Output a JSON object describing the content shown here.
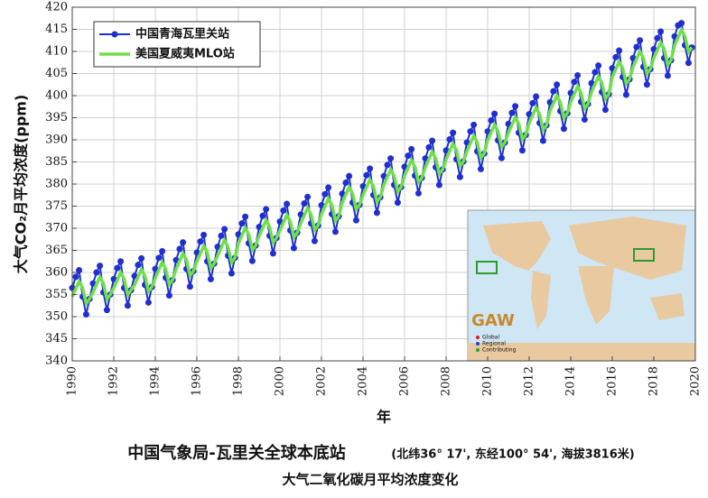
{
  "chart_data": {
    "type": "line",
    "title": "中国气象局-瓦里关全球本底站",
    "title_note": "(北纬36° 17', 东经100° 54', 海拔3816米)",
    "subtitle": "大气二氧化碳月平均浓度变化",
    "xlabel": "年",
    "ylabel": "大气CO₂月平均浓度(ppm)",
    "xlim": [
      1990,
      2020
    ],
    "xticks": [
      1990,
      1992,
      1994,
      1996,
      1998,
      2000,
      2002,
      2004,
      2006,
      2008,
      2010,
      2012,
      2014,
      2016,
      2018,
      2020
    ],
    "ylim": [
      340,
      420
    ],
    "yticks": [
      340,
      345,
      350,
      355,
      360,
      365,
      370,
      375,
      380,
      385,
      390,
      395,
      400,
      405,
      410,
      415,
      420
    ],
    "grid": true,
    "legend": "upper left",
    "inset": {
      "label": "GAW",
      "legend": [
        "Global",
        "Regional",
        "Contributing"
      ]
    },
    "x": [
      1990,
      1990.17,
      1990.33,
      1990.5,
      1990.67,
      1990.83,
      1991,
      1991.17,
      1991.33,
      1991.5,
      1991.67,
      1991.83,
      1992,
      1992.17,
      1992.33,
      1992.5,
      1992.67,
      1992.83,
      1993,
      1993.17,
      1993.33,
      1993.5,
      1993.67,
      1993.83,
      1994,
      1994.17,
      1994.33,
      1994.5,
      1994.67,
      1994.83,
      1995,
      1995.17,
      1995.33,
      1995.5,
      1995.67,
      1995.83,
      1996,
      1996.17,
      1996.33,
      1996.5,
      1996.67,
      1996.83,
      1997,
      1997.17,
      1997.33,
      1997.5,
      1997.67,
      1997.83,
      1998,
      1998.17,
      1998.33,
      1998.5,
      1998.67,
      1998.83,
      1999,
      1999.17,
      1999.33,
      1999.5,
      1999.67,
      1999.83,
      2000,
      2000.17,
      2000.33,
      2000.5,
      2000.67,
      2000.83,
      2001,
      2001.17,
      2001.33,
      2001.5,
      2001.67,
      2001.83,
      2002,
      2002.17,
      2002.33,
      2002.5,
      2002.67,
      2002.83,
      2003,
      2003.17,
      2003.33,
      2003.5,
      2003.67,
      2003.83,
      2004,
      2004.17,
      2004.33,
      2004.5,
      2004.67,
      2004.83,
      2005,
      2005.17,
      2005.33,
      2005.5,
      2005.67,
      2005.83,
      2006,
      2006.17,
      2006.33,
      2006.5,
      2006.67,
      2006.83,
      2007,
      2007.17,
      2007.33,
      2007.5,
      2007.67,
      2007.83,
      2008,
      2008.17,
      2008.33,
      2008.5,
      2008.67,
      2008.83,
      2009,
      2009.17,
      2009.33,
      2009.5,
      2009.67,
      2009.83,
      2010,
      2010.17,
      2010.33,
      2010.5,
      2010.67,
      2010.83,
      2011,
      2011.17,
      2011.33,
      2011.5,
      2011.67,
      2011.83,
      2012,
      2012.17,
      2012.33,
      2012.5,
      2012.67,
      2012.83,
      2013,
      2013.17,
      2013.33,
      2013.5,
      2013.67,
      2013.83,
      2014,
      2014.17,
      2014.33,
      2014.5,
      2014.67,
      2014.83,
      2015,
      2015.17,
      2015.33,
      2015.5,
      2015.67,
      2015.83,
      2016,
      2016.17,
      2016.33,
      2016.5,
      2016.67,
      2016.83,
      2017,
      2017.17,
      2017.33,
      2017.5,
      2017.67,
      2017.83,
      2018,
      2018.17,
      2018.33,
      2018.5,
      2018.67,
      2018.83,
      2019,
      2019.17,
      2019.33,
      2019.5,
      2019.67,
      2019.83
    ],
    "series": [
      {
        "name": "中国青海瓦里关站",
        "color": "#1f2fd0",
        "values": [
          356.5,
          359,
          360.5,
          354.5,
          350.5,
          354,
          357.5,
          360,
          361.5,
          355.5,
          351.5,
          355,
          358.5,
          361,
          362.5,
          356.5,
          352.5,
          356,
          359.2,
          361.7,
          363.2,
          357.2,
          353.2,
          356.7,
          360.8,
          363.3,
          364.8,
          358.8,
          354.8,
          358.3,
          362.8,
          365.3,
          366.8,
          360.8,
          356.8,
          360.3,
          364.5,
          367,
          368.5,
          362.5,
          358.5,
          362,
          365.8,
          368.3,
          369.8,
          363.8,
          359.8,
          363.3,
          368.6,
          371.1,
          372.6,
          366.6,
          362.6,
          366.1,
          370.3,
          372.8,
          374.3,
          368.3,
          364.3,
          367.8,
          371.5,
          374,
          375.5,
          369.5,
          365.5,
          369,
          373.1,
          375.6,
          377.1,
          371.1,
          367.1,
          370.6,
          375.2,
          377.7,
          379.2,
          373.2,
          369.2,
          372.7,
          377.8,
          380.3,
          381.8,
          375.8,
          371.8,
          375.3,
          379.5,
          382,
          383.5,
          377.5,
          373.5,
          377,
          381.8,
          384.3,
          385.8,
          379.8,
          375.8,
          379.3,
          383.9,
          386.4,
          387.9,
          381.9,
          377.9,
          381.4,
          385.8,
          388.3,
          389.8,
          383.8,
          379.8,
          383.3,
          387.6,
          390.1,
          391.6,
          385.6,
          381.6,
          385.1,
          389.4,
          391.9,
          393.4,
          387.4,
          383.4,
          386.9,
          391.9,
          394.4,
          395.9,
          389.9,
          385.9,
          389.4,
          393.6,
          396.1,
          397.6,
          391.6,
          387.6,
          391.1,
          395.8,
          398.3,
          399.8,
          393.8,
          389.8,
          393.3,
          398.5,
          401,
          402.5,
          396.5,
          392.5,
          396,
          400.6,
          403.1,
          404.6,
          398.6,
          394.6,
          398.1,
          402.8,
          405.3,
          406.8,
          400.8,
          396.8,
          400.3,
          406.2,
          408.7,
          410.2,
          404.2,
          400.2,
          403.7,
          408.5,
          411,
          412.5,
          406.5,
          402.5,
          406,
          410.5,
          413,
          414.5,
          408.5,
          404.5,
          408,
          413.4,
          415.9,
          416.4,
          411.4,
          407.4,
          410.9
        ]
      },
      {
        "name": "美国夏威夷MLO站",
        "color": "#6ee04a",
        "values": [
          354.5,
          356.3,
          358,
          356.5,
          353,
          354,
          355.5,
          357.3,
          359,
          357.5,
          354,
          355,
          356.5,
          358.3,
          360,
          358.5,
          355,
          356,
          357.2,
          359,
          360.7,
          359.2,
          355.7,
          356.7,
          358.8,
          360.6,
          362.3,
          360.8,
          357.3,
          358.3,
          360.8,
          362.6,
          364.3,
          362.8,
          359.3,
          360.3,
          362.5,
          364.3,
          366,
          364.5,
          361,
          362,
          363.8,
          365.6,
          367.3,
          365.8,
          362.3,
          363.3,
          366.6,
          368.4,
          370.1,
          368.6,
          365.1,
          366.1,
          368.3,
          370.1,
          371.8,
          370.3,
          366.8,
          367.8,
          369.5,
          371.3,
          373,
          371.5,
          368,
          369,
          371.1,
          372.9,
          374.6,
          373.1,
          369.6,
          370.6,
          373.2,
          375,
          376.7,
          375.2,
          371.7,
          372.7,
          375.8,
          377.6,
          379.3,
          377.8,
          374.3,
          375.3,
          377.5,
          379.3,
          381,
          379.5,
          376,
          377,
          379.8,
          381.6,
          383.3,
          381.8,
          378.3,
          379.3,
          381.9,
          383.7,
          385.4,
          383.9,
          380.4,
          381.4,
          383.8,
          385.6,
          387.3,
          385.8,
          382.3,
          383.3,
          385.6,
          387.4,
          389.1,
          387.6,
          384.1,
          385.1,
          387.4,
          389.2,
          390.9,
          389.4,
          385.9,
          386.9,
          389.9,
          391.7,
          393.4,
          391.9,
          388.4,
          389.4,
          391.6,
          393.4,
          395.1,
          393.6,
          390.1,
          391.1,
          393.8,
          395.6,
          397.3,
          395.8,
          392.3,
          393.3,
          396.5,
          398.3,
          400,
          398.5,
          395,
          396,
          398.6,
          400.4,
          402.1,
          400.6,
          397.1,
          398.1,
          400.8,
          402.6,
          404.3,
          402.8,
          399.3,
          400.3,
          404.2,
          406,
          407.7,
          406.2,
          402.7,
          403.7,
          406.5,
          408.3,
          410,
          408.5,
          405,
          406,
          408.5,
          410.3,
          412,
          410.5,
          407,
          408,
          411.4,
          413.2,
          414.9,
          413.4,
          409.9,
          410.9
        ]
      }
    ]
  }
}
